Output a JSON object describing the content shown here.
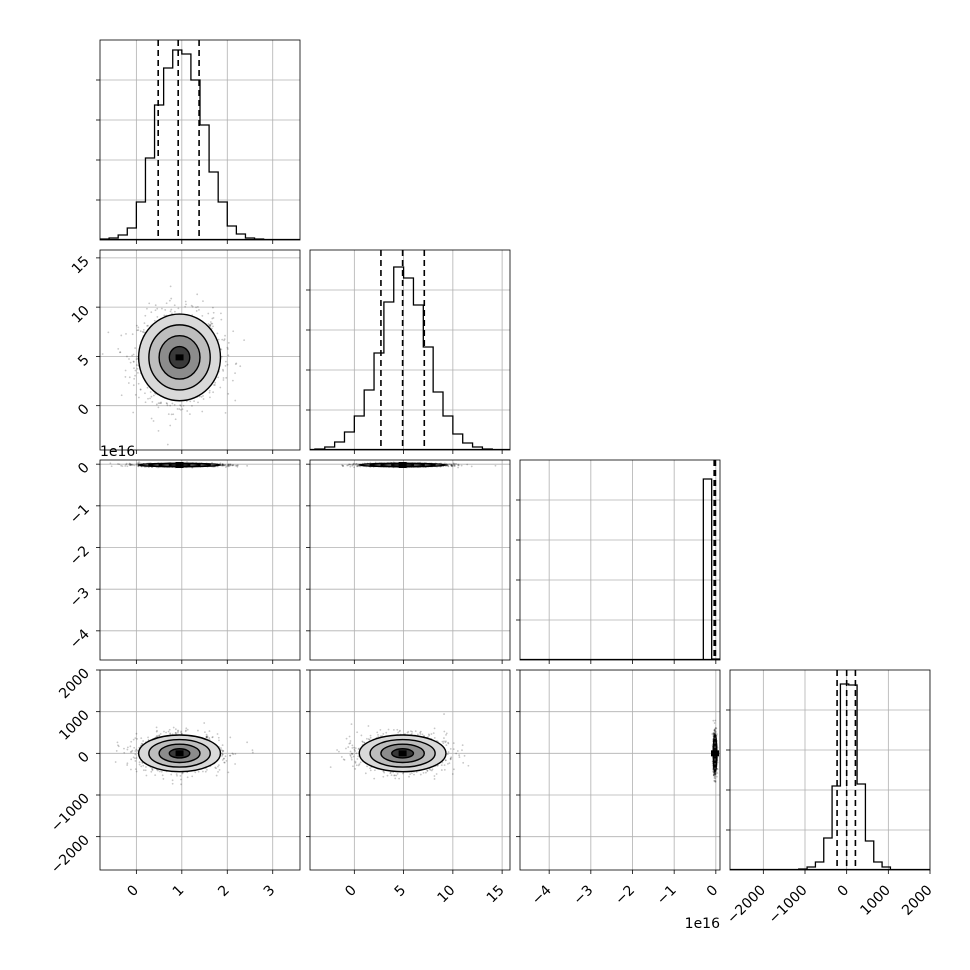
{
  "chart_data": {
    "type": "corner",
    "title": "",
    "grid": true,
    "colors": {
      "line": "#000000",
      "grid": "#b0b0b0",
      "scatter": "#000000"
    },
    "params": [
      {
        "range": [
          -0.8,
          3.6
        ],
        "ticks": [
          0,
          1,
          2,
          3
        ],
        "tick_labels": [
          "0",
          "1",
          "2",
          "3"
        ],
        "offset": "",
        "quantiles": [
          0.48,
          0.92,
          1.38
        ],
        "mean": 0.95,
        "sd": 0.45
      },
      {
        "range": [
          -4.5,
          15.8
        ],
        "ticks": [
          0,
          5,
          10,
          15
        ],
        "tick_labels": [
          "0",
          "5",
          "10",
          "15"
        ],
        "offset": "",
        "quantiles": [
          2.7,
          4.9,
          7.1
        ],
        "mean": 4.9,
        "sd": 2.2
      },
      {
        "range": [
          -4.7,
          0.1
        ],
        "ticks": [
          -4,
          -3,
          -2,
          -1,
          0
        ],
        "tick_labels": [
          "−4",
          "−3",
          "−2",
          "−1",
          "0"
        ],
        "offset": "1e16",
        "quantiles": [
          -0.04,
          -0.02,
          -0.01
        ],
        "mean": -0.02,
        "sd": 0.02
      },
      {
        "range": [
          -2800,
          2000
        ],
        "ticks": [
          -2000,
          -1000,
          0,
          1000,
          2000
        ],
        "tick_labels": [
          "−2000",
          "−1000",
          "0",
          "1000",
          "2000"
        ],
        "offset": "",
        "quantiles": [
          -230,
          0,
          210
        ],
        "mean": 0,
        "sd": 220
      }
    ],
    "diag_hist": [
      {
        "x": [
          -0.7,
          -0.5,
          -0.3,
          -0.1,
          0.1,
          0.3,
          0.5,
          0.7,
          0.9,
          1.1,
          1.3,
          1.5,
          1.7,
          1.9,
          2.1,
          2.3,
          2.5,
          2.7
        ],
        "counts": [
          1,
          2,
          5,
          12,
          38,
          82,
          135,
          172,
          190,
          186,
          160,
          115,
          68,
          38,
          14,
          6,
          2,
          1
        ],
        "ymax": 200,
        "ticks": [
          40,
          80,
          120,
          160
        ]
      },
      {
        "x": [
          -3.5,
          -2.5,
          -1.5,
          -0.5,
          0.5,
          1.5,
          2.5,
          3.5,
          4.5,
          5.5,
          6.5,
          7.5,
          8.5,
          9.5,
          10.5,
          11.5,
          12.5,
          13.5,
          14.5
        ],
        "counts": [
          1,
          3,
          8,
          18,
          34,
          60,
          97,
          148,
          183,
          172,
          145,
          103,
          58,
          34,
          16,
          7,
          3,
          1,
          0
        ],
        "ymax": 200,
        "ticks": [
          40,
          80,
          120,
          160
        ]
      },
      {
        "x": [
          -0.2,
          0.0
        ],
        "counts": [
          181,
          1
        ],
        "ymax": 200,
        "ticks": [
          40,
          80,
          120,
          160
        ]
      },
      {
        "x": [
          -1850,
          -1650,
          -1450,
          -1250,
          -1050,
          -850,
          -650,
          -450,
          -250,
          -50,
          150,
          350,
          550,
          750,
          950,
          1150
        ],
        "counts": [
          0,
          0,
          0,
          0,
          1,
          3,
          8,
          32,
          84,
          186,
          185,
          86,
          29,
          8,
          3,
          0
        ],
        "ymax": 200,
        "ticks": [
          40,
          80,
          120,
          160
        ]
      }
    ],
    "contour_levels_sigma": [
      0.5,
      1.0,
      1.5,
      2.0
    ]
  }
}
